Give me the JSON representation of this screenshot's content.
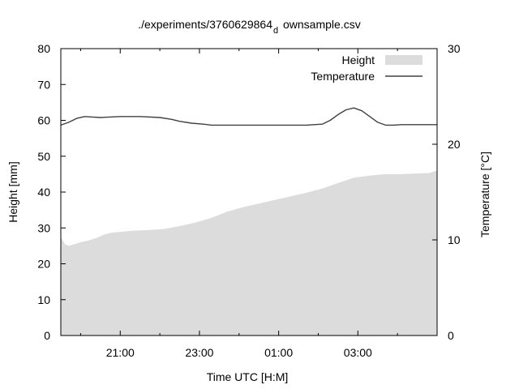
{
  "chart_data": {
    "type": "area",
    "title": "./experiments/3760629864",
    "title_subscript": "d",
    "title_suffix": "ownsample.csv",
    "xlabel": "Time UTC [H:M]",
    "ylabel": "Height [mm]",
    "y2label": "Temperature [°C]",
    "x_unit": "hours since 19:30 UTC",
    "xlim": [
      0,
      9.5
    ],
    "ylim": [
      0,
      80
    ],
    "y2lim": [
      0,
      30
    ],
    "x_ticks": [
      {
        "x": 1.5,
        "label": "21:00"
      },
      {
        "x": 3.5,
        "label": "23:00"
      },
      {
        "x": 5.5,
        "label": "01:00"
      },
      {
        "x": 7.5,
        "label": "03:00"
      }
    ],
    "x_minor_ticks": [
      0.5,
      2.5,
      4.5,
      6.5,
      8.5
    ],
    "y_ticks": [
      0,
      10,
      20,
      30,
      40,
      50,
      60,
      70,
      80
    ],
    "y2_ticks": [
      0,
      10,
      20,
      30
    ],
    "legend_position": "top-right",
    "colors": {
      "height": "#dcdcdc",
      "temperature": "#404040",
      "axis": "#000000"
    },
    "series": [
      {
        "name": "Height",
        "axis": "y",
        "style": "filled-area",
        "x": [
          0,
          0.1,
          0.2,
          0.3,
          0.5,
          0.7,
          0.9,
          1.1,
          1.3,
          1.5,
          1.8,
          2.2,
          2.6,
          3.0,
          3.4,
          3.8,
          4.2,
          4.6,
          5.0,
          5.4,
          5.8,
          6.2,
          6.6,
          7.0,
          7.4,
          7.8,
          8.2,
          8.6,
          9.0,
          9.3,
          9.5
        ],
        "values": [
          27.5,
          25.5,
          25,
          25.3,
          26,
          26.5,
          27.2,
          28.2,
          28.7,
          28.9,
          29.2,
          29.4,
          29.7,
          30.5,
          31.5,
          32.8,
          34.5,
          35.8,
          36.8,
          37.8,
          38.8,
          39.8,
          41,
          42.5,
          44,
          44.6,
          45,
          45,
          45.2,
          45.3,
          46
        ]
      },
      {
        "name": "Temperature",
        "axis": "y2",
        "style": "line",
        "x": [
          0,
          0.2,
          0.4,
          0.6,
          0.8,
          1.0,
          1.5,
          2.0,
          2.5,
          2.8,
          3.0,
          3.3,
          3.6,
          3.8,
          4.2,
          4.8,
          5.5,
          6.2,
          6.6,
          6.8,
          7.0,
          7.2,
          7.4,
          7.6,
          7.8,
          8.0,
          8.2,
          8.4,
          8.6,
          9.0,
          9.5
        ],
        "values": [
          22,
          22.3,
          22.7,
          22.9,
          22.85,
          22.8,
          22.9,
          22.9,
          22.8,
          22.6,
          22.4,
          22.2,
          22.1,
          22.0,
          22.0,
          22.0,
          22.0,
          22.0,
          22.1,
          22.5,
          23.1,
          23.6,
          23.8,
          23.5,
          22.9,
          22.3,
          22.0,
          22.0,
          22.05,
          22.05,
          22.05
        ]
      }
    ]
  }
}
